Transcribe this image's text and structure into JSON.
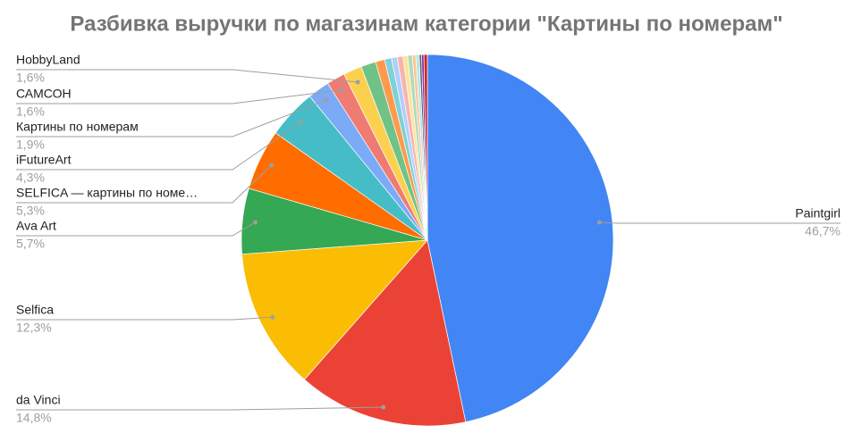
{
  "chart_data": {
    "type": "pie",
    "title": "Разбивка выручки по магазинам категории \"Картины по номерам\"",
    "categories": [
      "Paintgirl",
      "da Vinci",
      "Selfica",
      "Ava Art",
      "SELFICA — картины по номе…",
      "iFutureArt",
      "Картины по номерам",
      "САМСОН",
      "HobbyLand",
      null,
      null,
      null,
      null,
      null,
      null,
      null,
      null,
      null,
      null,
      null,
      null
    ],
    "values": [
      46.7,
      14.8,
      12.3,
      5.7,
      5.3,
      4.3,
      1.9,
      1.6,
      1.6,
      1.3,
      0.8,
      0.6,
      0.5,
      0.5,
      0.4,
      0.4,
      0.3,
      0.3,
      0.2,
      0.2,
      0.3
    ],
    "value_labels": [
      "46,7%",
      "14,8%",
      "12,3%",
      "5,7%",
      "5,3%",
      "4,3%",
      "1,9%",
      "1,6%",
      "1,6%",
      null,
      null,
      null,
      null,
      null,
      null,
      null,
      null,
      null,
      null,
      null,
      null
    ],
    "colors": [
      "#4285f4",
      "#ea4335",
      "#fbbc04",
      "#34a853",
      "#ff6d01",
      "#46bdc6",
      "#7baaf7",
      "#f07b72",
      "#fcd04f",
      "#71c287",
      "#ff994d",
      "#7ed1d7",
      "#b3cefb",
      "#f7b4ae",
      "#fde49b",
      "#aedcba",
      "#ffc599",
      "#b5e5e8",
      "#5f6368",
      "#8e24aa",
      "#c62828"
    ]
  }
}
